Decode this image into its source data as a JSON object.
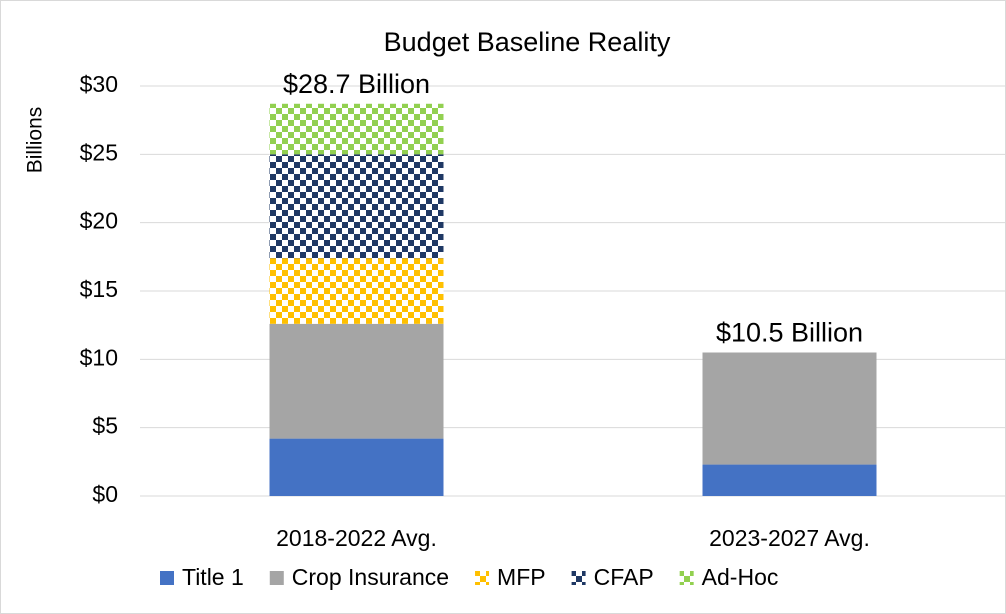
{
  "chart_data": {
    "type": "stacked-bar",
    "title": "Budget Baseline Reality",
    "y_label": "Billions",
    "categories": [
      "2018-2022 Avg.",
      "2023-2027 Avg."
    ],
    "series": [
      {
        "name": "Title 1",
        "color": "#4472c4",
        "pattern": "solid",
        "values": [
          4.2,
          2.3
        ]
      },
      {
        "name": "Crop Insurance",
        "color": "#a5a5a5",
        "pattern": "solid",
        "values": [
          8.4,
          8.2
        ]
      },
      {
        "name": "MFP",
        "color": "#ffc000",
        "pattern": "checker",
        "values": [
          4.8,
          0
        ]
      },
      {
        "name": "CFAP",
        "color": "#1f3864",
        "pattern": "checker",
        "values": [
          7.6,
          0
        ]
      },
      {
        "name": "Ad-Hoc",
        "color": "#92d050",
        "pattern": "checker",
        "values": [
          3.7,
          0
        ]
      }
    ],
    "totals": {
      "values": [
        28.7,
        10.5
      ],
      "value_labels": [
        "$28.7 Billion",
        "$10.5 Billion"
      ]
    },
    "ylim": [
      0,
      30
    ],
    "yticks": [
      {
        "value": 0,
        "label": "$0"
      },
      {
        "value": 5,
        "label": "$5"
      },
      {
        "value": 10,
        "label": "$10"
      },
      {
        "value": 15,
        "label": "$15"
      },
      {
        "value": 20,
        "label": "$20"
      },
      {
        "value": 25,
        "label": "$25"
      },
      {
        "value": 30,
        "label": "$30"
      }
    ],
    "grid": true
  }
}
